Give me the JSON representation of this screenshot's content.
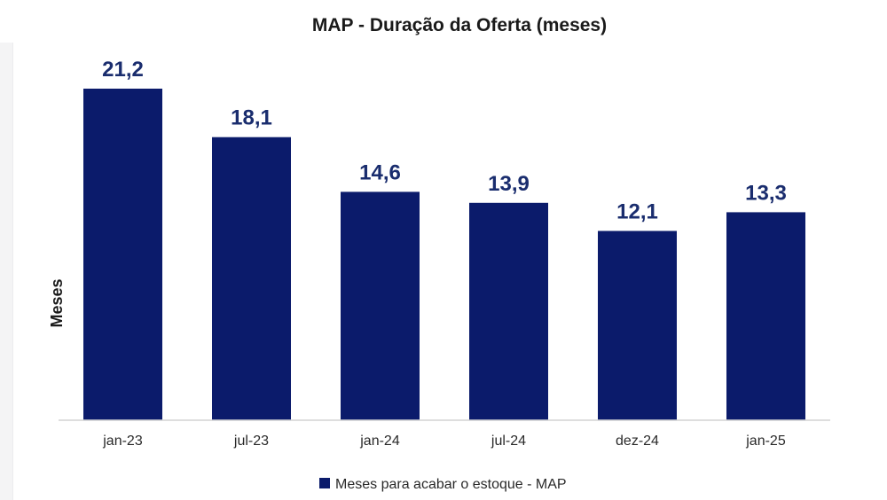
{
  "chart_data": {
    "type": "bar",
    "title": "MAP - Duração da Oferta (meses)",
    "xlabel": "",
    "ylabel": "Meses",
    "categories": [
      "jan-23",
      "jul-23",
      "jan-24",
      "jul-24",
      "dez-24",
      "jan-25"
    ],
    "series": [
      {
        "name": "Meses para acabar o estoque - MAP",
        "values": [
          21.2,
          18.1,
          14.6,
          13.9,
          12.1,
          13.3
        ],
        "labels": [
          "21,2",
          "18,1",
          "14,6",
          "13,9",
          "12,1",
          "13,3"
        ],
        "color": "#0b1b6b"
      }
    ],
    "ylim": [
      0,
      21.2
    ],
    "grid": false,
    "legend": "bottom-center",
    "data_labels": "above-bars"
  },
  "colors": {
    "bar": "#0b1b6b",
    "value_label": "#1a2d6e",
    "axis": "#d4d4d4",
    "text": "#1a1a1a"
  }
}
